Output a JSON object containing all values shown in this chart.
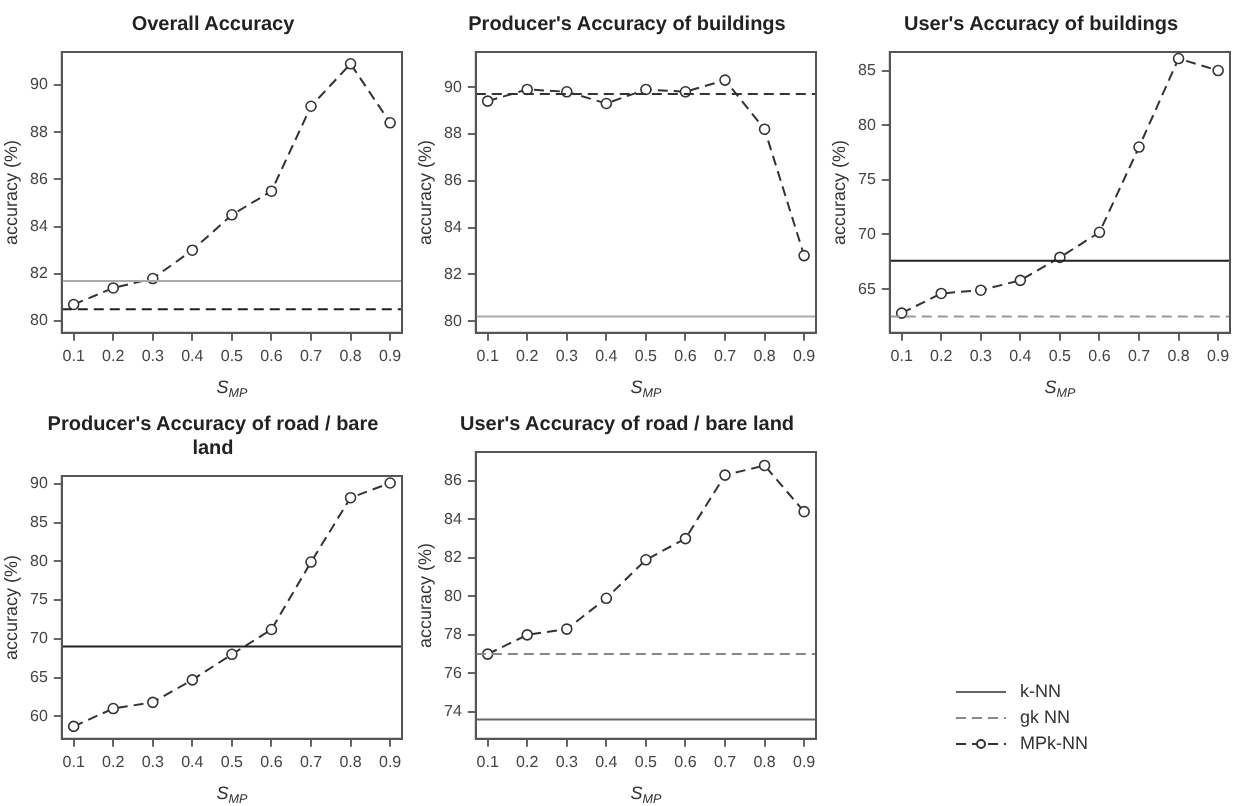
{
  "chart_data": [
    {
      "type": "line",
      "title": "Overall Accuracy",
      "xlabel": "S$_{MP}$",
      "ylabel": "accuracy (%)",
      "x": [
        0.1,
        0.2,
        0.3,
        0.4,
        0.5,
        0.6,
        0.7,
        0.8,
        0.9
      ],
      "xlim": [
        0.07,
        0.93
      ],
      "xticks": [
        0.1,
        0.2,
        0.3,
        0.4,
        0.5,
        0.6,
        0.7,
        0.8,
        0.9
      ],
      "ylim": [
        79.5,
        91.4
      ],
      "yticks": [
        80,
        82,
        84,
        86,
        88,
        90
      ],
      "grid": false,
      "legend": false,
      "ref_lines": [
        {
          "axis": "y",
          "value": 81.7,
          "color": "#aaaaaa",
          "line_style": "solid"
        },
        {
          "axis": "y",
          "value": 80.5,
          "color": "#222222",
          "line_style": "dashed"
        }
      ],
      "series": [
        {
          "color": "#333333",
          "values": [
            80.7,
            81.4,
            81.8,
            83.0,
            84.5,
            85.5,
            89.1,
            90.9,
            88.4
          ],
          "line_style": "dashed",
          "marker": "circle"
        }
      ]
    },
    {
      "type": "line",
      "title": "Producer's Accuracy of buildings",
      "xlabel": "S$_{MP}$",
      "ylabel": "accuracy (%)",
      "x": [
        0.1,
        0.2,
        0.3,
        0.4,
        0.5,
        0.6,
        0.7,
        0.8,
        0.9
      ],
      "xlim": [
        0.07,
        0.93
      ],
      "xticks": [
        0.1,
        0.2,
        0.3,
        0.4,
        0.5,
        0.6,
        0.7,
        0.8,
        0.9
      ],
      "ylim": [
        79.5,
        91.5
      ],
      "yticks": [
        80,
        82,
        84,
        86,
        88,
        90
      ],
      "grid": false,
      "legend": false,
      "ref_lines": [
        {
          "axis": "y",
          "value": 80.2,
          "color": "#aaaaaa",
          "line_style": "solid"
        },
        {
          "axis": "y",
          "value": 89.7,
          "color": "#333333",
          "line_style": "dashed"
        }
      ],
      "series": [
        {
          "color": "#333333",
          "values": [
            89.4,
            89.9,
            89.8,
            89.3,
            89.9,
            89.8,
            90.3,
            88.2,
            82.8
          ],
          "line_style": "dashed",
          "marker": "circle"
        }
      ]
    },
    {
      "type": "line",
      "title": "User's Accuracy of buildings",
      "xlabel": "S$_{MP}$",
      "ylabel": "accuracy (%)",
      "x": [
        0.1,
        0.2,
        0.3,
        0.4,
        0.5,
        0.6,
        0.7,
        0.8,
        0.9
      ],
      "xlim": [
        0.07,
        0.93
      ],
      "xticks": [
        0.1,
        0.2,
        0.3,
        0.4,
        0.5,
        0.6,
        0.7,
        0.8,
        0.9
      ],
      "ylim": [
        61,
        86.7
      ],
      "yticks": [
        65,
        70,
        75,
        80,
        85
      ],
      "grid": false,
      "legend": false,
      "ref_lines": [
        {
          "axis": "y",
          "value": 67.6,
          "color": "#222222",
          "line_style": "solid"
        },
        {
          "axis": "y",
          "value": 62.5,
          "color": "#999999",
          "line_style": "dashed"
        }
      ],
      "series": [
        {
          "color": "#333333",
          "values": [
            62.8,
            64.6,
            64.9,
            65.8,
            67.9,
            70.2,
            78.0,
            86.1,
            85.0
          ],
          "line_style": "dashed",
          "marker": "circle"
        }
      ]
    },
    {
      "type": "line",
      "title": "Producer's Accuracy of road / bare land",
      "xlabel": "S$_{MP}$",
      "ylabel": "accuracy (%)",
      "x": [
        0.1,
        0.2,
        0.3,
        0.4,
        0.5,
        0.6,
        0.7,
        0.8,
        0.9
      ],
      "xlim": [
        0.07,
        0.93
      ],
      "xticks": [
        0.1,
        0.2,
        0.3,
        0.4,
        0.5,
        0.6,
        0.7,
        0.8,
        0.9
      ],
      "ylim": [
        57.1,
        91
      ],
      "yticks": [
        60,
        65,
        70,
        75,
        80,
        85,
        90
      ],
      "grid": false,
      "legend": false,
      "ref_lines": [
        {
          "axis": "y",
          "value": 69,
          "color": "#222222",
          "line_style": "solid"
        }
      ],
      "series": [
        {
          "color": "#333333",
          "values": [
            58.7,
            61.0,
            61.8,
            64.7,
            68.0,
            71.2,
            79.9,
            88.2,
            90.1
          ],
          "line_style": "dashed",
          "marker": "circle"
        }
      ]
    },
    {
      "type": "line",
      "title": "User's Accuracy of road / bare land",
      "xlabel": "S$_{MP}$",
      "ylabel": "accuracy (%)",
      "x": [
        0.1,
        0.2,
        0.3,
        0.4,
        0.5,
        0.6,
        0.7,
        0.8,
        0.9
      ],
      "xlim": [
        0.07,
        0.93
      ],
      "xticks": [
        0.1,
        0.2,
        0.3,
        0.4,
        0.5,
        0.6,
        0.7,
        0.8,
        0.9
      ],
      "ylim": [
        72.6,
        87.5
      ],
      "yticks": [
        74,
        76,
        78,
        80,
        82,
        84,
        86
      ],
      "grid": false,
      "legend": "right",
      "ref_lines": [
        {
          "axis": "y",
          "value": 73.6,
          "color": "#666666",
          "line_style": "solid",
          "label": "k-NN"
        },
        {
          "axis": "y",
          "value": 77.0,
          "color": "#888888",
          "line_style": "dashed",
          "label": "gk NN"
        }
      ],
      "series": [
        {
          "name": "MPk-NN",
          "color": "#333333",
          "values": [
            77.0,
            78.0,
            78.3,
            79.9,
            81.9,
            83.0,
            86.3,
            86.8,
            84.4
          ],
          "line_style": "dashed",
          "marker": "circle"
        }
      ]
    }
  ]
}
